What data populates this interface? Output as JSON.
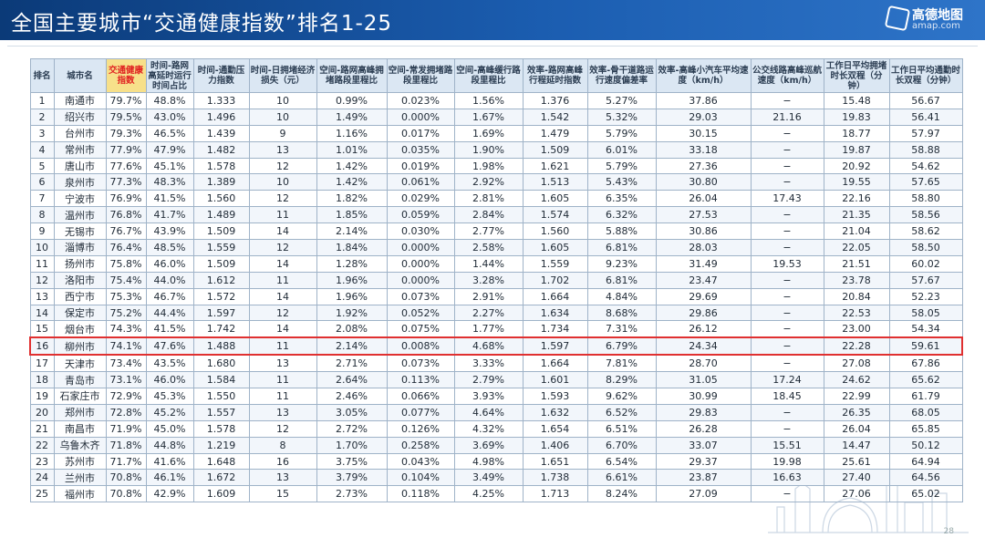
{
  "slide": {
    "title": "全国主要城市“交通健康指数”排名1-25",
    "logo_name": "高德地图",
    "logo_url": "amap.com",
    "page_number": "28"
  },
  "table": {
    "headers": [
      "排名",
      "城市名",
      "交通健康指数",
      "时间-路网高延时运行时间占比",
      "时间-通勤压力指数",
      "时间-日拥堵经济损失（元）",
      "空间-路网高峰拥堵路段里程比",
      "空间-常发拥堵路段里程比",
      "空间-高峰缓行路段里程比",
      "效率-路网高峰行程延时指数",
      "效率-骨干道路运行速度偏差率",
      "效率-高峰小汽车平均速度（km/h）",
      "公交线路高峰巡航速度（km/h）",
      "工作日平均拥堵时长双程（分钟）",
      "工作日平均通勤时长双程（分钟）"
    ],
    "highlight_header_index": 2,
    "highlight_row_index": 15,
    "rows": [
      [
        "1",
        "南通市",
        "79.7%",
        "48.8%",
        "1.333",
        "10",
        "0.99%",
        "0.023%",
        "1.56%",
        "1.376",
        "5.27%",
        "37.86",
        "−",
        "15.48",
        "56.67"
      ],
      [
        "2",
        "绍兴市",
        "79.5%",
        "43.0%",
        "1.496",
        "10",
        "1.49%",
        "0.000%",
        "1.67%",
        "1.542",
        "5.32%",
        "29.03",
        "21.16",
        "19.83",
        "56.41"
      ],
      [
        "3",
        "台州市",
        "79.3%",
        "46.5%",
        "1.439",
        "9",
        "1.16%",
        "0.017%",
        "1.69%",
        "1.479",
        "5.79%",
        "30.15",
        "−",
        "18.77",
        "57.97"
      ],
      [
        "4",
        "常州市",
        "77.9%",
        "47.9%",
        "1.482",
        "13",
        "1.01%",
        "0.035%",
        "1.90%",
        "1.509",
        "6.01%",
        "33.18",
        "−",
        "19.87",
        "58.88"
      ],
      [
        "5",
        "唐山市",
        "77.6%",
        "45.1%",
        "1.578",
        "12",
        "1.42%",
        "0.019%",
        "1.98%",
        "1.621",
        "5.79%",
        "27.36",
        "−",
        "20.92",
        "54.62"
      ],
      [
        "6",
        "泉州市",
        "77.3%",
        "48.3%",
        "1.389",
        "10",
        "1.42%",
        "0.061%",
        "2.92%",
        "1.513",
        "5.43%",
        "30.80",
        "−",
        "19.55",
        "57.65"
      ],
      [
        "7",
        "宁波市",
        "76.9%",
        "41.5%",
        "1.560",
        "12",
        "1.82%",
        "0.029%",
        "2.81%",
        "1.605",
        "6.35%",
        "26.04",
        "17.43",
        "22.16",
        "58.80"
      ],
      [
        "8",
        "温州市",
        "76.8%",
        "41.7%",
        "1.489",
        "11",
        "1.85%",
        "0.059%",
        "2.84%",
        "1.574",
        "6.32%",
        "27.53",
        "−",
        "21.35",
        "58.56"
      ],
      [
        "9",
        "无锡市",
        "76.7%",
        "43.9%",
        "1.509",
        "14",
        "2.14%",
        "0.030%",
        "2.77%",
        "1.560",
        "5.88%",
        "30.86",
        "−",
        "21.04",
        "58.62"
      ],
      [
        "10",
        "淄博市",
        "76.4%",
        "48.5%",
        "1.559",
        "12",
        "1.84%",
        "0.000%",
        "2.58%",
        "1.605",
        "6.81%",
        "28.03",
        "−",
        "22.05",
        "58.50"
      ],
      [
        "11",
        "扬州市",
        "75.8%",
        "46.0%",
        "1.509",
        "14",
        "1.28%",
        "0.000%",
        "1.44%",
        "1.559",
        "9.23%",
        "31.49",
        "19.53",
        "21.51",
        "60.02"
      ],
      [
        "12",
        "洛阳市",
        "75.4%",
        "44.0%",
        "1.612",
        "11",
        "1.96%",
        "0.000%",
        "3.28%",
        "1.702",
        "6.81%",
        "23.47",
        "−",
        "23.78",
        "57.67"
      ],
      [
        "13",
        "西宁市",
        "75.3%",
        "46.7%",
        "1.572",
        "14",
        "1.96%",
        "0.073%",
        "2.91%",
        "1.664",
        "4.84%",
        "29.69",
        "−",
        "20.84",
        "52.23"
      ],
      [
        "14",
        "保定市",
        "75.2%",
        "44.4%",
        "1.597",
        "12",
        "1.92%",
        "0.052%",
        "2.27%",
        "1.634",
        "8.68%",
        "29.86",
        "−",
        "22.53",
        "58.05"
      ],
      [
        "15",
        "烟台市",
        "74.3%",
        "41.5%",
        "1.742",
        "14",
        "2.08%",
        "0.075%",
        "1.77%",
        "1.734",
        "7.31%",
        "26.12",
        "−",
        "23.00",
        "54.34"
      ],
      [
        "16",
        "柳州市",
        "74.1%",
        "47.6%",
        "1.488",
        "11",
        "2.14%",
        "0.008%",
        "4.68%",
        "1.597",
        "6.79%",
        "24.34",
        "−",
        "22.28",
        "59.61"
      ],
      [
        "17",
        "天津市",
        "73.4%",
        "43.5%",
        "1.680",
        "13",
        "2.71%",
        "0.073%",
        "3.33%",
        "1.664",
        "7.81%",
        "28.70",
        "−",
        "27.08",
        "67.86"
      ],
      [
        "18",
        "青岛市",
        "73.1%",
        "46.0%",
        "1.584",
        "11",
        "2.64%",
        "0.113%",
        "2.79%",
        "1.601",
        "8.29%",
        "31.05",
        "17.24",
        "24.62",
        "65.62"
      ],
      [
        "19",
        "石家庄市",
        "72.9%",
        "45.3%",
        "1.550",
        "11",
        "2.46%",
        "0.066%",
        "3.93%",
        "1.593",
        "9.62%",
        "30.99",
        "18.45",
        "22.99",
        "61.79"
      ],
      [
        "20",
        "郑州市",
        "72.8%",
        "45.2%",
        "1.557",
        "13",
        "3.05%",
        "0.077%",
        "4.64%",
        "1.632",
        "6.52%",
        "29.83",
        "−",
        "26.35",
        "68.05"
      ],
      [
        "21",
        "南昌市",
        "71.9%",
        "45.0%",
        "1.578",
        "12",
        "2.72%",
        "0.126%",
        "4.32%",
        "1.654",
        "6.51%",
        "26.28",
        "−",
        "26.04",
        "65.85"
      ],
      [
        "22",
        "乌鲁木齐",
        "71.8%",
        "44.8%",
        "1.219",
        "8",
        "1.70%",
        "0.258%",
        "3.69%",
        "1.406",
        "6.70%",
        "33.07",
        "15.51",
        "14.47",
        "50.12"
      ],
      [
        "23",
        "苏州市",
        "71.7%",
        "41.6%",
        "1.648",
        "16",
        "3.75%",
        "0.043%",
        "4.98%",
        "1.651",
        "6.54%",
        "29.37",
        "19.98",
        "25.61",
        "64.94"
      ],
      [
        "24",
        "兰州市",
        "70.8%",
        "46.1%",
        "1.672",
        "13",
        "3.79%",
        "0.104%",
        "3.49%",
        "1.738",
        "6.61%",
        "23.87",
        "16.63",
        "27.40",
        "64.56"
      ],
      [
        "25",
        "福州市",
        "70.8%",
        "42.9%",
        "1.609",
        "15",
        "2.73%",
        "0.118%",
        "4.25%",
        "1.713",
        "8.24%",
        "27.09",
        "−",
        "27.06",
        "65.02"
      ]
    ]
  }
}
